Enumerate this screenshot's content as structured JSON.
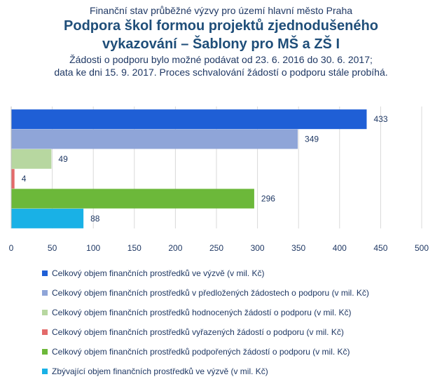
{
  "header": {
    "supertitle": "Finanční stav průběžné výzvy pro území hlavní město Praha",
    "title_line1": "Podpora škol formou projektů zjednodušeného",
    "title_line2": "vykazování – Šablony pro MŠ a ZŠ I",
    "subtitle_line1": "Žádosti o podporu bylo možné podávat od 23. 6. 2016 do 30. 6. 2017;",
    "subtitle_line2": "data ke dni 15. 9. 2017. Proces schvalování žádostí o podporu stále probíhá."
  },
  "chart_data": {
    "type": "bar",
    "orientation": "horizontal",
    "xlim": [
      0,
      500
    ],
    "x_ticks": [
      0,
      50,
      100,
      150,
      200,
      250,
      300,
      350,
      400,
      450,
      500
    ],
    "grid": true,
    "legend_position": "bottom",
    "series": [
      {
        "name": "Celkový objem finančních prostředků ve výzvě (v mil. Kč)",
        "value": 433,
        "color": "#1f5fd6"
      },
      {
        "name": "Celkový objem finančních prostředků v předložených žádostech o podporu (v mil. Kč)",
        "value": 349,
        "color": "#8fa5d8"
      },
      {
        "name": "Celkový objem finančních prostředků hodnocených žádostí o podporu (v mil. Kč)",
        "value": 49,
        "color": "#b7d7a0"
      },
      {
        "name": "Celkový objem finančních prostředků vyřazených žádostí o podporu (v mil. Kč)",
        "value": 4,
        "color": "#e36a6a"
      },
      {
        "name": "Celkový objem finančních prostředků podpořených žádostí o podporu (v mil. Kč)",
        "value": 296,
        "color": "#6cb83a"
      },
      {
        "name": "Zbývající objem finančních prostředků ve výzvě (v mil. Kč)",
        "value": 88,
        "color": "#19b1e6"
      }
    ]
  }
}
